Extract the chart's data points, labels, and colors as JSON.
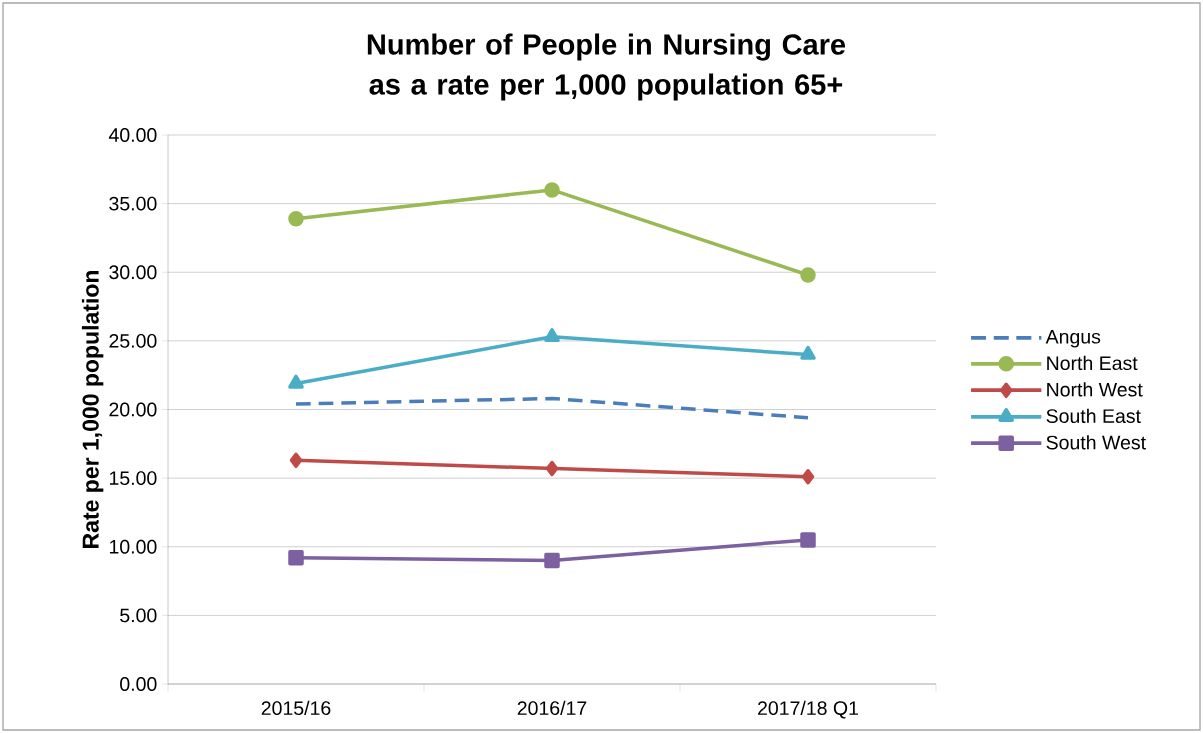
{
  "chart_data": {
    "type": "line",
    "title": "Number of People in Nursing Care as a rate per 1,000 population 65+",
    "ylabel": "Rate per 1,000 population",
    "categories": [
      "2015/16",
      "2016/17",
      "2017/18 Q1"
    ],
    "series": [
      {
        "name": "Angus",
        "color": "#4a7ebb",
        "values": [
          20.4,
          20.8,
          19.4
        ],
        "marker": "none",
        "line_style": "dashed"
      },
      {
        "name": "North East",
        "color": "#98b954",
        "values": [
          33.9,
          36.0,
          29.8
        ],
        "marker": "circle",
        "line_style": "solid"
      },
      {
        "name": "North West",
        "color": "#be4b48",
        "values": [
          16.3,
          15.7,
          15.1
        ],
        "marker": "diamond",
        "line_style": "solid"
      },
      {
        "name": "South East",
        "color": "#4bacc6",
        "values": [
          21.9,
          25.3,
          24.0
        ],
        "marker": "triangle",
        "line_style": "solid"
      },
      {
        "name": "South West",
        "color": "#7d60a0",
        "values": [
          9.2,
          9.0,
          10.5
        ],
        "marker": "square",
        "line_style": "solid"
      }
    ],
    "ylim": [
      0,
      40
    ],
    "yticks": [
      {
        "value": 0,
        "label": "0.00"
      },
      {
        "value": 5,
        "label": "5.00"
      },
      {
        "value": 10,
        "label": "10.00"
      },
      {
        "value": 15,
        "label": "15.00"
      },
      {
        "value": 20,
        "label": "20.00"
      },
      {
        "value": 25,
        "label": "25.00"
      },
      {
        "value": 30,
        "label": "30.00"
      },
      {
        "value": 35,
        "label": "35.00"
      },
      {
        "value": 40,
        "label": "40.00"
      }
    ],
    "grid": "y",
    "legend": "right"
  }
}
